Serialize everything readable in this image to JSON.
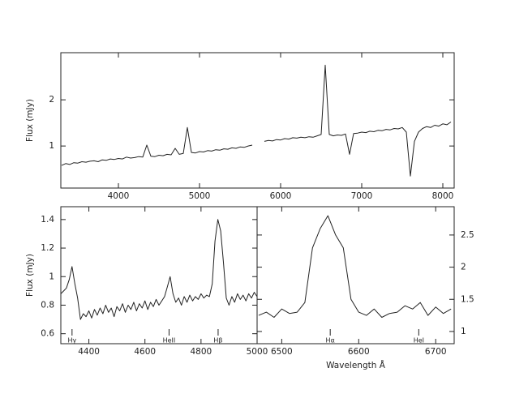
{
  "chart_data": [
    {
      "type": "line",
      "ylabel": "Flux (mJy)",
      "color": "#222222",
      "xlim": [
        3290,
        8140
      ],
      "ylim": [
        0.09,
        3.02
      ],
      "xticks": [
        4000,
        5000,
        6000,
        7000,
        8000
      ],
      "yticks": [
        1,
        2
      ],
      "y_axis_side": "left",
      "x": [
        3300,
        3350,
        3400,
        3450,
        3500,
        3550,
        3600,
        3650,
        3700,
        3750,
        3800,
        3850,
        3900,
        3950,
        4000,
        4050,
        4100,
        4150,
        4200,
        4250,
        4300,
        4350,
        4400,
        4450,
        4500,
        4550,
        4600,
        4650,
        4700,
        4750,
        4800,
        4850,
        4900,
        4950,
        5000,
        5050,
        5100,
        5150,
        5200,
        5250,
        5300,
        5350,
        5400,
        5450,
        5500,
        5550,
        5600,
        5650,
        5700,
        5750,
        5800,
        5850,
        5900,
        5950,
        6000,
        6050,
        6100,
        6150,
        6200,
        6250,
        6300,
        6350,
        6400,
        6450,
        6500,
        6550,
        6600,
        6650,
        6700,
        6750,
        6800,
        6850,
        6900,
        6950,
        7000,
        7050,
        7100,
        7150,
        7200,
        7250,
        7300,
        7350,
        7400,
        7450,
        7500,
        7550,
        7600,
        7650,
        7700,
        7750,
        7800,
        7850,
        7900,
        7950,
        8000,
        8050,
        8100
      ],
      "values": [
        0.58,
        0.62,
        0.6,
        0.64,
        0.63,
        0.66,
        0.65,
        0.67,
        0.68,
        0.66,
        0.7,
        0.69,
        0.72,
        0.71,
        0.73,
        0.72,
        0.76,
        0.74,
        0.75,
        0.77,
        0.76,
        1.02,
        0.78,
        0.77,
        0.8,
        0.79,
        0.82,
        0.81,
        0.95,
        0.82,
        0.84,
        1.4,
        0.86,
        0.85,
        0.88,
        0.87,
        0.9,
        0.89,
        0.92,
        0.91,
        0.94,
        0.93,
        0.96,
        0.95,
        0.98,
        0.97,
        1.0,
        1.02,
        null,
        null,
        1.1,
        1.12,
        1.11,
        1.14,
        1.13,
        1.16,
        1.15,
        1.18,
        1.17,
        1.19,
        1.18,
        1.2,
        1.19,
        1.22,
        1.25,
        2.75,
        1.25,
        1.22,
        1.24,
        1.23,
        1.26,
        0.82,
        1.27,
        1.28,
        1.3,
        1.29,
        1.32,
        1.31,
        1.34,
        1.33,
        1.36,
        1.35,
        1.38,
        1.37,
        1.4,
        1.3,
        0.35,
        1.1,
        1.3,
        1.38,
        1.42,
        1.4,
        1.45,
        1.43,
        1.48,
        1.46,
        1.52
      ]
    },
    {
      "type": "line",
      "ylabel": "Flux (mJy)",
      "color": "#222222",
      "xlim": [
        4300,
        5000
      ],
      "ylim": [
        0.53,
        1.49
      ],
      "xticks": [
        4400,
        4600,
        4800,
        5000
      ],
      "yticks": [
        0.6,
        0.8,
        1,
        1.2,
        1.4
      ],
      "y_axis_side": "left",
      "x": [
        4300,
        4310,
        4320,
        4330,
        4340,
        4350,
        4360,
        4370,
        4380,
        4390,
        4400,
        4410,
        4420,
        4430,
        4440,
        4450,
        4460,
        4470,
        4480,
        4490,
        4500,
        4510,
        4520,
        4530,
        4540,
        4550,
        4560,
        4570,
        4580,
        4590,
        4600,
        4610,
        4620,
        4630,
        4640,
        4650,
        4660,
        4670,
        4680,
        4690,
        4700,
        4710,
        4720,
        4730,
        4740,
        4750,
        4760,
        4770,
        4780,
        4790,
        4800,
        4810,
        4820,
        4830,
        4840,
        4850,
        4860,
        4870,
        4880,
        4890,
        4900,
        4910,
        4920,
        4930,
        4940,
        4950,
        4960,
        4970,
        4980,
        4990,
        5000
      ],
      "values": [
        0.88,
        0.9,
        0.92,
        0.98,
        1.07,
        0.95,
        0.85,
        0.7,
        0.74,
        0.72,
        0.76,
        0.71,
        0.77,
        0.73,
        0.78,
        0.74,
        0.8,
        0.75,
        0.78,
        0.72,
        0.79,
        0.76,
        0.81,
        0.75,
        0.8,
        0.77,
        0.82,
        0.76,
        0.81,
        0.78,
        0.83,
        0.77,
        0.82,
        0.79,
        0.84,
        0.8,
        0.83,
        0.86,
        0.93,
        1.0,
        0.88,
        0.82,
        0.85,
        0.8,
        0.86,
        0.82,
        0.87,
        0.83,
        0.86,
        0.84,
        0.88,
        0.85,
        0.87,
        0.86,
        0.95,
        1.25,
        1.4,
        1.32,
        1.1,
        0.85,
        0.8,
        0.86,
        0.82,
        0.88,
        0.84,
        0.87,
        0.83,
        0.88,
        0.85,
        0.89,
        0.86
      ],
      "annotations": [
        {
          "text": "Hγ",
          "x": 4340
        },
        {
          "text": "HeII",
          "x": 4686
        },
        {
          "text": "Hβ",
          "x": 4861
        }
      ]
    },
    {
      "type": "line",
      "xlabel": "Wavelength Å",
      "color": "#222222",
      "xlim": [
        6468,
        6724
      ],
      "ylim": [
        0.81,
        2.94
      ],
      "xticks": [
        6500,
        6600,
        6700
      ],
      "yticks": [
        1,
        1.5,
        2,
        2.5
      ],
      "y_axis_side": "right",
      "x": [
        6470,
        6480,
        6490,
        6500,
        6510,
        6520,
        6530,
        6540,
        6550,
        6560,
        6570,
        6580,
        6590,
        6600,
        6610,
        6620,
        6630,
        6640,
        6650,
        6660,
        6670,
        6680,
        6690,
        6700,
        6710,
        6720
      ],
      "values": [
        1.25,
        1.3,
        1.22,
        1.35,
        1.28,
        1.3,
        1.45,
        2.3,
        2.6,
        2.8,
        2.5,
        2.3,
        1.5,
        1.3,
        1.25,
        1.35,
        1.22,
        1.28,
        1.3,
        1.4,
        1.35,
        1.45,
        1.25,
        1.38,
        1.28,
        1.35
      ],
      "annotations": [
        {
          "text": "Hα",
          "x": 6563
        },
        {
          "text": "HeI",
          "x": 6678
        }
      ]
    }
  ]
}
